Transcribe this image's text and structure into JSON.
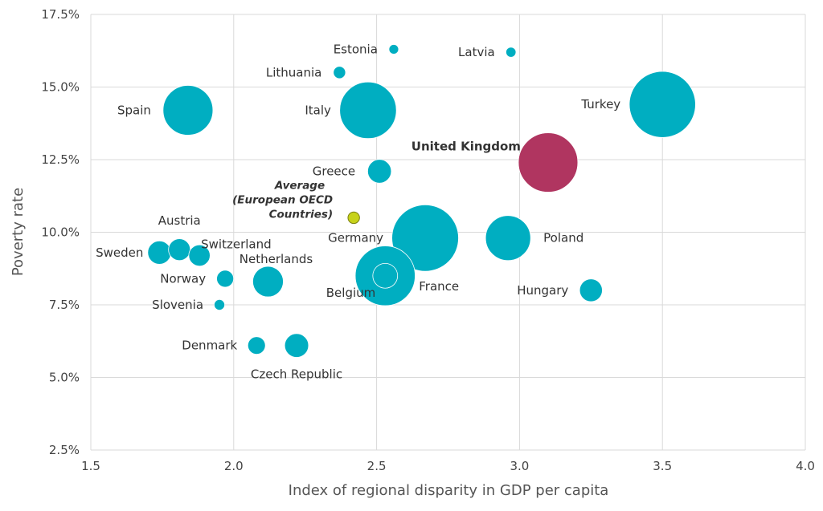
{
  "chart_data": {
    "type": "scatter",
    "xlabel": "Index of regional disparity in GDP per capita",
    "ylabel": "Poverty rate",
    "xlim": [
      1.5,
      4.0
    ],
    "ylim": [
      2.5,
      17.5
    ],
    "x_ticks": [
      "1.5",
      "2.0",
      "2.5",
      "3.0",
      "3.5",
      "4.0"
    ],
    "y_ticks": [
      "2.5%",
      "5.0%",
      "7.5%",
      "10.0%",
      "12.5%",
      "15.0%",
      "17.5%"
    ],
    "grid": true,
    "colors": {
      "default": "#00aec1",
      "highlight": "#b03560",
      "average": "#c7d21a"
    },
    "points": [
      {
        "label": "Estonia",
        "x": 2.56,
        "y": 16.3,
        "size": 1.3
      },
      {
        "label": "Latvia",
        "x": 2.97,
        "y": 16.2,
        "size": 1.9
      },
      {
        "label": "Lithuania",
        "x": 2.37,
        "y": 15.5,
        "size": 2.8
      },
      {
        "label": "Spain",
        "x": 1.84,
        "y": 14.2,
        "size": 46.5
      },
      {
        "label": "Italy",
        "x": 2.47,
        "y": 14.2,
        "size": 60.0
      },
      {
        "label": "Turkey",
        "x": 3.5,
        "y": 14.4,
        "size": 82.0
      },
      {
        "label": "United Kingdom",
        "x": 3.1,
        "y": 12.4,
        "size": 66.0,
        "highlight": true
      },
      {
        "label": "Greece",
        "x": 2.51,
        "y": 12.1,
        "size": 10.5
      },
      {
        "label": "Average (European OECD Countries)",
        "label_lines": [
          "Average",
          "(European OECD",
          "Countries)"
        ],
        "x": 2.42,
        "y": 10.5,
        "size": 2.5,
        "average": true
      },
      {
        "label": "Austria",
        "x": 1.81,
        "y": 9.4,
        "size": 8.9
      },
      {
        "label": "Switzerland",
        "x": 1.88,
        "y": 9.2,
        "size": 8.5
      },
      {
        "label": "Sweden",
        "x": 1.74,
        "y": 9.3,
        "size": 10.2
      },
      {
        "label": "Germany",
        "x": 2.67,
        "y": 9.8,
        "size": 83.0
      },
      {
        "label": "Poland",
        "x": 2.96,
        "y": 9.8,
        "size": 38.0
      },
      {
        "label": "Netherlands",
        "x": 2.12,
        "y": 8.3,
        "size": 17.5
      },
      {
        "label": "Norway",
        "x": 1.97,
        "y": 8.4,
        "size": 5.4
      },
      {
        "label": "Belgium",
        "x": 2.53,
        "y": 8.5,
        "size": 11.5
      },
      {
        "label": "France",
        "x": 2.53,
        "y": 8.5,
        "size": 67.0
      },
      {
        "label": "Hungary",
        "x": 3.25,
        "y": 8.0,
        "size": 9.7
      },
      {
        "label": "Slovenia",
        "x": 1.95,
        "y": 7.5,
        "size": 2.1
      },
      {
        "label": "Denmark",
        "x": 2.08,
        "y": 6.1,
        "size": 5.8
      },
      {
        "label": "Czech Republic",
        "x": 2.22,
        "y": 6.1,
        "size": 10.7
      }
    ]
  }
}
